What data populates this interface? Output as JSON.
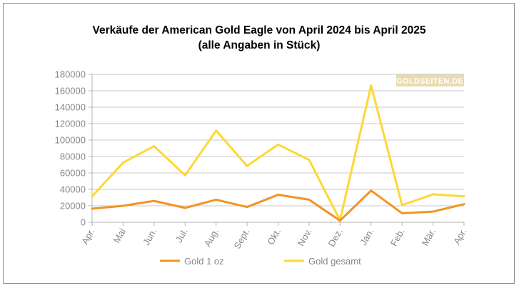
{
  "chart_data": {
    "type": "line",
    "title": "Verkäufe der American Gold Eagle von April 2024 bis April 2025",
    "subtitle": "(alle Angaben in Stück)",
    "categories": [
      "Apr.",
      "Mai",
      "Jun.",
      "Jul.",
      "Aug.",
      "Sept.",
      "Okt.",
      "Nov.",
      "Dez.",
      "Jan.",
      "Feb.",
      "Mär.",
      "Apr."
    ],
    "series": [
      {
        "name": "Gold 1 oz",
        "color": "#f39422",
        "values": [
          16500,
          20000,
          26000,
          17500,
          27500,
          18500,
          33500,
          27500,
          2000,
          38500,
          11000,
          13000,
          22000
        ]
      },
      {
        "name": "Gold gesamt",
        "color": "#fdd835",
        "values": [
          31500,
          72500,
          92500,
          57000,
          111500,
          68500,
          94500,
          76000,
          2500,
          166500,
          21000,
          34000,
          31500
        ]
      }
    ],
    "ylim": [
      0,
      180000
    ],
    "yticks": [
      0,
      20000,
      40000,
      60000,
      80000,
      100000,
      120000,
      140000,
      160000,
      180000
    ],
    "grid": true,
    "legend": "bottom",
    "watermark": "GOLDSEITEN.DE"
  }
}
